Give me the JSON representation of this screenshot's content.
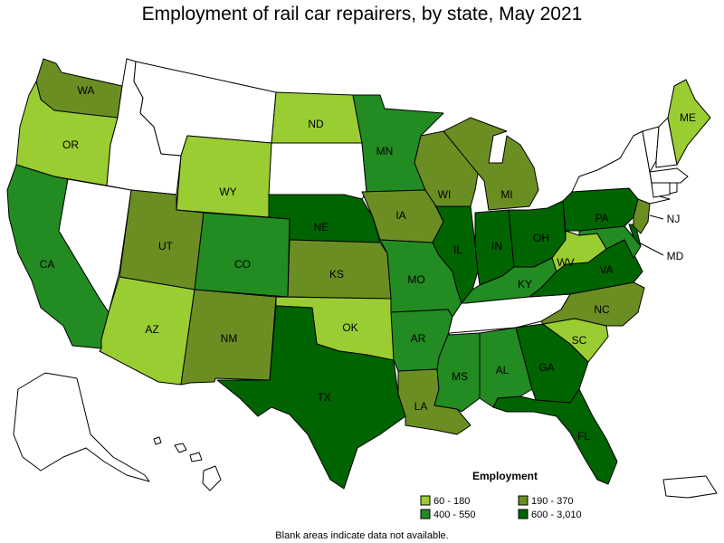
{
  "title": "Employment of rail car repairers, by state, May 2021",
  "footnote": "Blank areas indicate data not available.",
  "legend": {
    "title": "Employment",
    "items": [
      {
        "label": "60 - 180",
        "color": "#9acd32"
      },
      {
        "label": "190 - 370",
        "color": "#6b8e23"
      },
      {
        "label": "400 - 550",
        "color": "#228b22"
      },
      {
        "label": "600 - 3,010",
        "color": "#006400"
      }
    ]
  },
  "colors": {
    "no_data": "#ffffff",
    "c1": "#9acd32",
    "c2": "#6b8e23",
    "c3": "#228b22",
    "c4": "#006400"
  },
  "states": {
    "WA": {
      "label": "WA",
      "class": 2
    },
    "OR": {
      "label": "OR",
      "class": 1
    },
    "CA": {
      "label": "CA",
      "class": 3
    },
    "NV": {
      "label": "",
      "class": 0
    },
    "ID": {
      "label": "",
      "class": 0
    },
    "MT": {
      "label": "",
      "class": 0
    },
    "WY": {
      "label": "WY",
      "class": 1
    },
    "UT": {
      "label": "UT",
      "class": 2
    },
    "AZ": {
      "label": "AZ",
      "class": 1
    },
    "CO": {
      "label": "CO",
      "class": 3
    },
    "NM": {
      "label": "NM",
      "class": 2
    },
    "ND": {
      "label": "ND",
      "class": 1
    },
    "SD": {
      "label": "",
      "class": 0
    },
    "NE": {
      "label": "NE",
      "class": 4
    },
    "KS": {
      "label": "KS",
      "class": 2
    },
    "OK": {
      "label": "OK",
      "class": 1
    },
    "TX": {
      "label": "TX",
      "class": 4
    },
    "MN": {
      "label": "MN",
      "class": 3
    },
    "IA": {
      "label": "IA",
      "class": 2
    },
    "MO": {
      "label": "MO",
      "class": 3
    },
    "AR": {
      "label": "AR",
      "class": 3
    },
    "LA": {
      "label": "LA",
      "class": 2
    },
    "WI": {
      "label": "WI",
      "class": 2
    },
    "IL": {
      "label": "IL",
      "class": 4
    },
    "MI": {
      "label": "MI",
      "class": 2
    },
    "IN": {
      "label": "IN",
      "class": 4
    },
    "OH": {
      "label": "OH",
      "class": 4
    },
    "KY": {
      "label": "KY",
      "class": 3
    },
    "TN": {
      "label": "",
      "class": 0
    },
    "MS": {
      "label": "MS",
      "class": 3
    },
    "AL": {
      "label": "AL",
      "class": 3
    },
    "GA": {
      "label": "GA",
      "class": 4
    },
    "FL": {
      "label": "FL",
      "class": 4
    },
    "SC": {
      "label": "SC",
      "class": 1
    },
    "NC": {
      "label": "NC",
      "class": 2
    },
    "VA": {
      "label": "VA",
      "class": 4
    },
    "WV": {
      "label": "WV",
      "class": 1
    },
    "PA": {
      "label": "PA",
      "class": 4
    },
    "NY": {
      "label": "",
      "class": 0
    },
    "NJ": {
      "label": "NJ",
      "class": 2
    },
    "MD": {
      "label": "MD",
      "class": 3
    },
    "DE": {
      "label": "",
      "class": 4
    },
    "ME": {
      "label": "ME",
      "class": 1
    },
    "NH": {
      "label": "",
      "class": 0
    },
    "VT": {
      "label": "",
      "class": 0
    },
    "MA": {
      "label": "",
      "class": 0
    },
    "CT": {
      "label": "",
      "class": 0
    },
    "RI": {
      "label": "",
      "class": 0
    },
    "AK": {
      "label": "",
      "class": 0
    },
    "HI": {
      "label": "",
      "class": 0
    },
    "PR": {
      "label": "",
      "class": 0
    }
  }
}
